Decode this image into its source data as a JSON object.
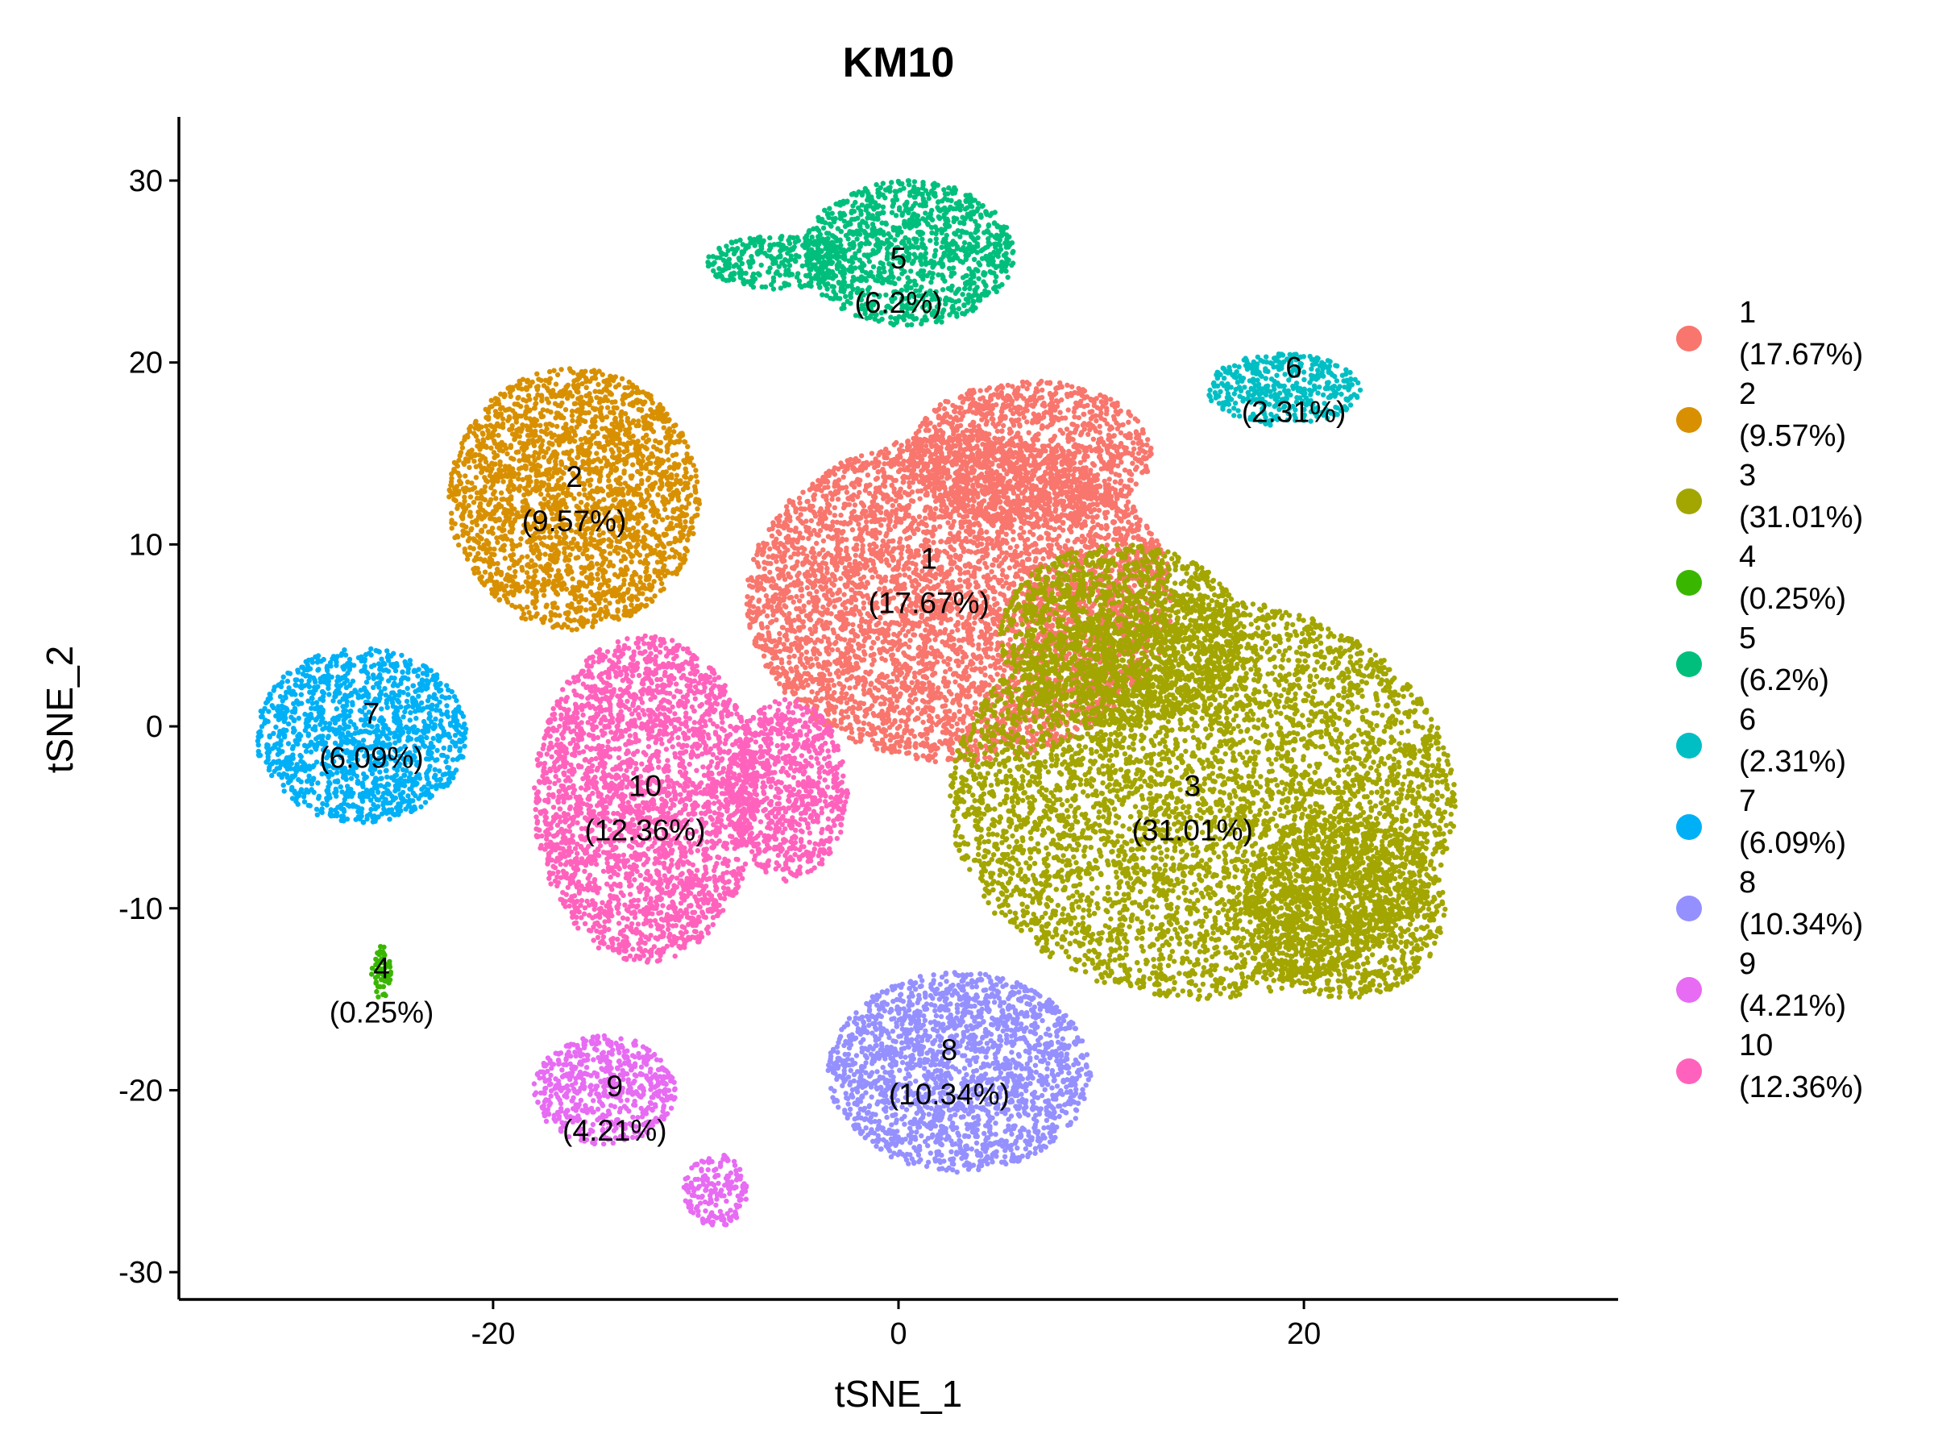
{
  "chart_data": {
    "type": "scatter",
    "title": "KM10",
    "xlabel": "tSNE_1",
    "ylabel": "tSNE_2",
    "xlim": [
      -35.5,
      35.5
    ],
    "ylim": [
      -31.5,
      33.5
    ],
    "xticks": [
      -20,
      0,
      20
    ],
    "yticks": [
      30,
      20,
      10,
      0,
      -10,
      -20,
      -30
    ],
    "grid": false,
    "legend_position": "right",
    "clusters": [
      {
        "name": "1",
        "pct": "(17.67%)",
        "color": "#F8766D",
        "label_x": 1.5,
        "label_y": 8,
        "blobs": [
          {
            "cx": 3,
            "cy": 7,
            "rx": 10.5,
            "ry": 9
          },
          {
            "cx": 6.5,
            "cy": 15,
            "rx": 6,
            "ry": 4
          }
        ]
      },
      {
        "name": "2",
        "pct": "(9.57%)",
        "color": "#D89000",
        "label_x": -16,
        "label_y": 12.5,
        "blobs": [
          {
            "cx": -16,
            "cy": 12.5,
            "rx": 6.2,
            "ry": 7.2
          }
        ]
      },
      {
        "name": "3",
        "pct": "(31.01%)",
        "color": "#A3A500",
        "label_x": 14.5,
        "label_y": -4.5,
        "blobs": [
          {
            "cx": 15,
            "cy": -4,
            "rx": 12.5,
            "ry": 11
          },
          {
            "cx": 11,
            "cy": 5,
            "rx": 6,
            "ry": 5
          },
          {
            "cx": 22,
            "cy": -10,
            "rx": 5,
            "ry": 5
          }
        ]
      },
      {
        "name": "4",
        "pct": "(0.25%)",
        "color": "#39B600",
        "label_x": -25.5,
        "label_y": -14.5,
        "blobs": [
          {
            "cx": -25.5,
            "cy": -13.5,
            "rx": 0.5,
            "ry": 1.5
          }
        ]
      },
      {
        "name": "5",
        "pct": "(6.2%)",
        "color": "#00BF7D",
        "label_x": 0,
        "label_y": 24.5,
        "blobs": [
          {
            "cx": 0.5,
            "cy": 26,
            "rx": 5.2,
            "ry": 4
          },
          {
            "cx": -6,
            "cy": 25.5,
            "rx": 3.5,
            "ry": 1.5
          }
        ]
      },
      {
        "name": "6",
        "pct": "(2.31%)",
        "color": "#00BFC4",
        "label_x": 19.5,
        "label_y": 18.5,
        "blobs": [
          {
            "cx": 19,
            "cy": 18.5,
            "rx": 3.8,
            "ry": 2
          }
        ]
      },
      {
        "name": "7",
        "pct": "(6.09%)",
        "color": "#00B0F6",
        "label_x": -26,
        "label_y": -0.5,
        "blobs": [
          {
            "cx": -26.5,
            "cy": -0.5,
            "rx": 5.2,
            "ry": 4.8
          }
        ]
      },
      {
        "name": "8",
        "pct": "(10.34%)",
        "color": "#9590FF",
        "label_x": 2.5,
        "label_y": -19,
        "blobs": [
          {
            "cx": 3,
            "cy": -19,
            "rx": 6.5,
            "ry": 5.5
          }
        ]
      },
      {
        "name": "9",
        "pct": "(4.21%)",
        "color": "#E76BF3",
        "label_x": -14,
        "label_y": -21,
        "blobs": [
          {
            "cx": -14.5,
            "cy": -20,
            "rx": 3.5,
            "ry": 3
          },
          {
            "cx": -9,
            "cy": -25.5,
            "rx": 1.6,
            "ry": 2
          }
        ]
      },
      {
        "name": "10",
        "pct": "(12.36%)",
        "color": "#FF62BC",
        "label_x": -12.5,
        "label_y": -4.5,
        "blobs": [
          {
            "cx": -12.5,
            "cy": -4,
            "rx": 5.5,
            "ry": 9
          },
          {
            "cx": -5.5,
            "cy": -3.5,
            "rx": 3,
            "ry": 5
          }
        ]
      }
    ]
  }
}
